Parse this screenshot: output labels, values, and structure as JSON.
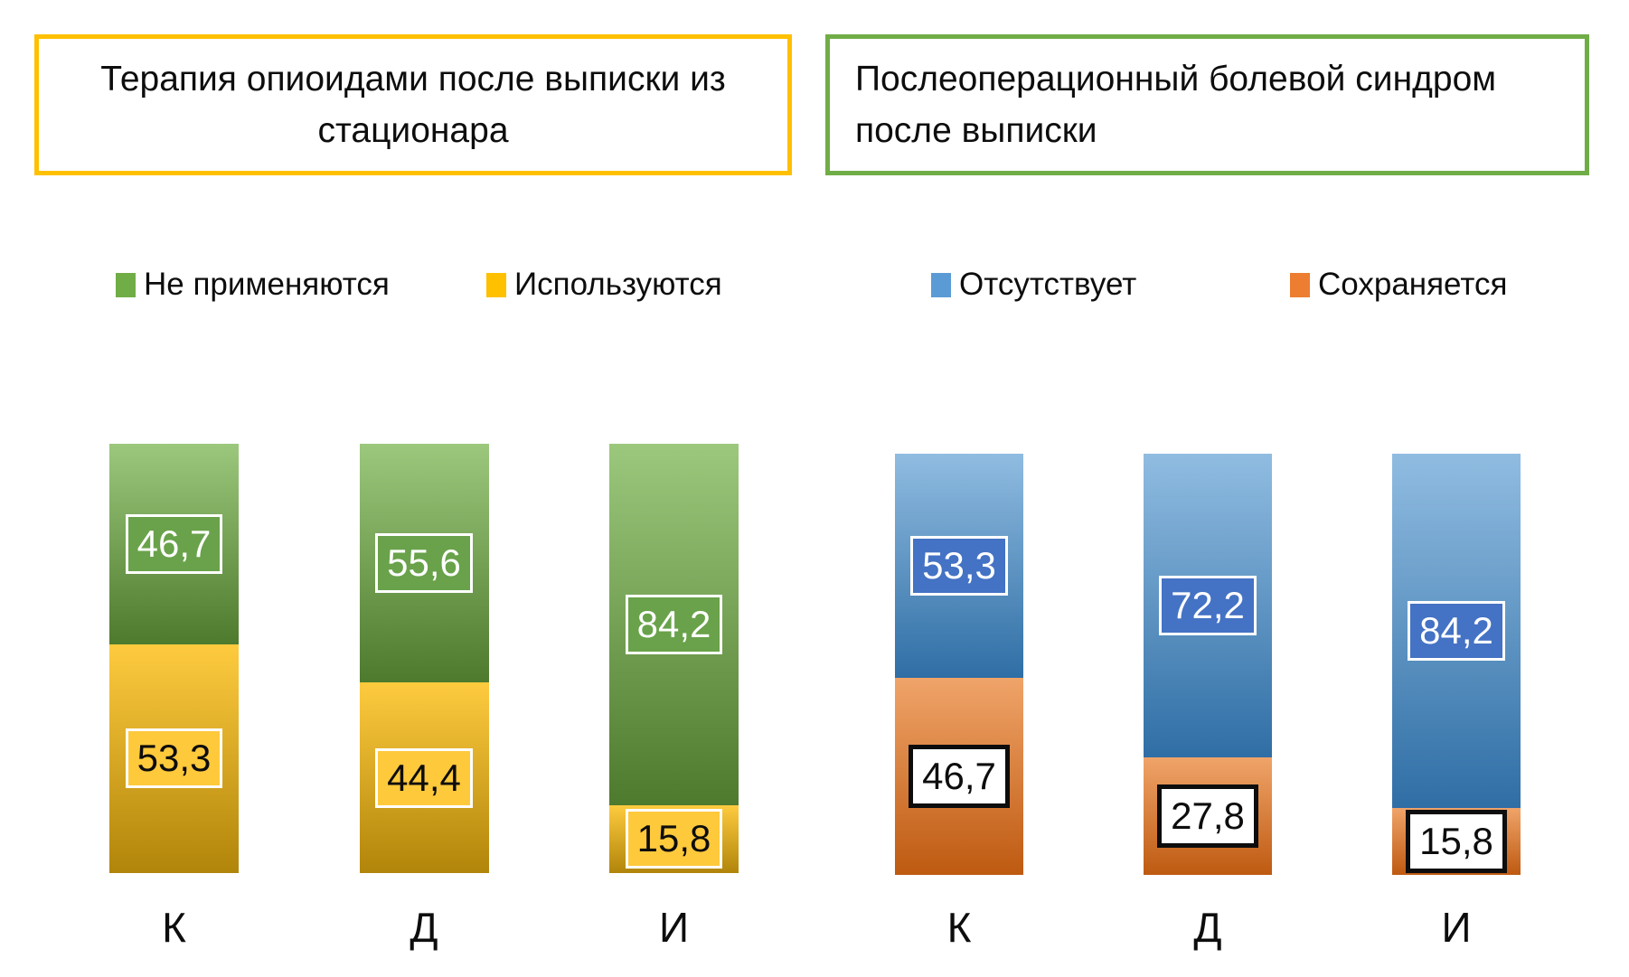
{
  "page": {
    "background": "#FFFFFF"
  },
  "chart_data": [
    {
      "type": "bar",
      "stacked": true,
      "orientation": "vertical",
      "title": "Терапия опиоидами после выписки из стационара",
      "title_border_color": "#FFC000",
      "categories": [
        "К",
        "Д",
        "И"
      ],
      "legend_position": "top",
      "grid": false,
      "ylim": [
        0,
        100
      ],
      "value_format": "decimal-comma",
      "legend": [
        {
          "label": "Не применяются",
          "color": "#70AD47"
        },
        {
          "label": "Используются",
          "color": "#FFC000"
        }
      ],
      "series": [
        {
          "name": "Не применяются",
          "values": [
            46.7,
            55.6,
            84.2
          ],
          "gradient": [
            "#9CC87D",
            "#4E7A2D"
          ],
          "label_bg": "#69A24A",
          "label_border": "#FFFFFF",
          "label_border_width": 3,
          "label_color": "#FFFFFF"
        },
        {
          "name": "Используются",
          "values": [
            53.3,
            44.4,
            15.8
          ],
          "gradient": [
            "#FECB3F",
            "#B1850A"
          ],
          "label_bg": "#FFC93C",
          "label_border": "#FFFFFF",
          "label_border_width": 3,
          "label_color": "#0D0D0D"
        }
      ]
    },
    {
      "type": "bar",
      "stacked": true,
      "orientation": "vertical",
      "title": "Послеоперационный болевой синдром после выписки",
      "title_border_color": "#70AD47",
      "categories": [
        "К",
        "Д",
        "И"
      ],
      "legend_position": "top",
      "grid": false,
      "ylim": [
        0,
        100
      ],
      "value_format": "decimal-comma",
      "legend": [
        {
          "label": "Отсутствует",
          "color": "#5B9BD5"
        },
        {
          "label": "Сохраняется",
          "color": "#ED7D31"
        }
      ],
      "series": [
        {
          "name": "Отсутствует",
          "values": [
            53.3,
            72.2,
            84.2
          ],
          "gradient": [
            "#90BCE1",
            "#2F6EA5"
          ],
          "label_bg": "#4472C4",
          "label_border": "#FFFFFF",
          "label_border_width": 3,
          "label_color": "#FFFFFF"
        },
        {
          "name": "Сохраняется",
          "values": [
            46.7,
            27.8,
            15.8
          ],
          "gradient": [
            "#F0A469",
            "#BE5A11"
          ],
          "label_bg": "#FFFFFF",
          "label_border": "#0D0D0D",
          "label_border_width": 5,
          "label_color": "#0D0D0D"
        }
      ]
    }
  ]
}
